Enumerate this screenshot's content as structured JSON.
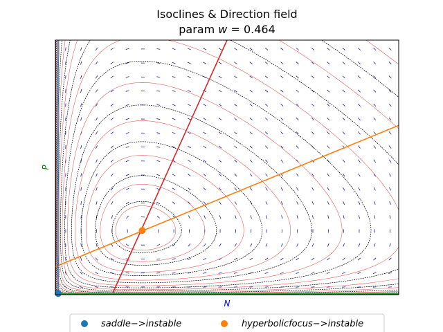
{
  "chart_data": {
    "type": "line",
    "title": "Isoclines & Direction field",
    "subtitle_prefix": "param ",
    "subtitle_var": "w",
    "subtitle_suffix": " = 0.464",
    "xlabel": "N",
    "ylabel": "P",
    "xlim": [
      0,
      1
    ],
    "ylim": [
      0,
      1
    ],
    "grid": false,
    "xticks": [],
    "yticks": [],
    "legend_position": "bottom-center",
    "colors": {
      "xlabel": "#0000ff",
      "ylabel": "#008000",
      "n_nullcline": "#d62728",
      "p_nullcline": "#ff7f0e",
      "axis_nullcline_n0": "#1f77b4",
      "axis_nullcline_p0": "#2ca02c",
      "trajectory_dark": "#000000",
      "trajectory_light": "#e03030",
      "direction_arrows": "#1a1a8c",
      "saddle": "#1f77b4",
      "focus": "#ff7f0e"
    },
    "isoclines": [
      {
        "name": "N-isocline",
        "color": "#d62728",
        "points": [
          [
            0.165,
            0.0
          ],
          [
            0.5,
            1.0
          ]
        ]
      },
      {
        "name": "P-isocline",
        "color": "#ff7f0e",
        "points": [
          [
            0.0,
            0.11
          ],
          [
            1.0,
            0.665
          ]
        ]
      },
      {
        "name": "N=0",
        "color": "#1f77b4",
        "points": [
          [
            0.008,
            0.0
          ],
          [
            0.008,
            1.0
          ]
        ]
      },
      {
        "name": "P=0",
        "color": "#2ca02c",
        "points": [
          [
            0.0,
            0.005
          ],
          [
            1.0,
            0.005
          ]
        ]
      }
    ],
    "equilibria": [
      {
        "label": "saddle − > instable",
        "legend_text": "saddle−>instable",
        "N": 0.008,
        "P": 0.005,
        "color": "#1f77b4"
      },
      {
        "label": "hyperbolic focus − > instable",
        "legend_text": "hyperbolicfocus−>instable",
        "N": 0.253,
        "P": 0.252,
        "color": "#ff7f0e"
      }
    ],
    "trajectory_family": {
      "kind": "Lotka-Volterra closed orbits",
      "center": [
        0.253,
        0.252
      ],
      "levels_dark": [
        0.02,
        0.06,
        0.13,
        0.22,
        0.34,
        0.48,
        0.64,
        0.82,
        1.02,
        1.25,
        1.5,
        1.8,
        2.15,
        2.55,
        3.0,
        3.5,
        4.1,
        4.8,
        5.6
      ],
      "levels_light": [
        0.015,
        0.045,
        0.1,
        0.18,
        0.28,
        0.41,
        0.56,
        0.73,
        0.92,
        1.14,
        1.38,
        1.65,
        1.98,
        2.35,
        2.78,
        3.25,
        3.8,
        4.45,
        5.2,
        6.0
      ]
    }
  }
}
